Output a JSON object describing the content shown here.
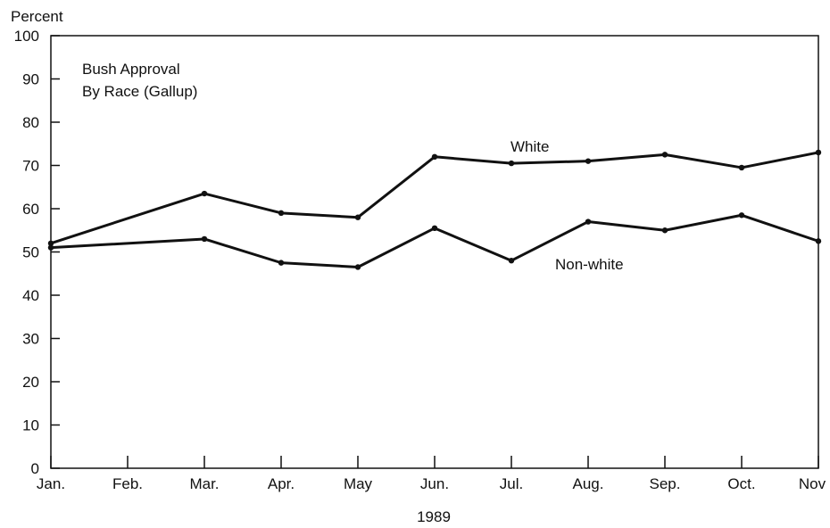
{
  "chart_data": {
    "type": "line",
    "title": "Bush Approval",
    "subtitle": "By Race (Gallup)",
    "ylabel": "Percent",
    "xlabel": "1989",
    "ylim": [
      0,
      100
    ],
    "yticks": [
      0,
      10,
      20,
      30,
      40,
      50,
      60,
      70,
      80,
      90,
      100
    ],
    "x_tick_labels": [
      "Jan.",
      "Feb.",
      "Mar.",
      "Apr.",
      "May",
      "Jun.",
      "Jul.",
      "Aug.",
      "Sep.",
      "Oct.",
      "Nov"
    ],
    "grid": false,
    "legend": "inline labels",
    "series": [
      {
        "name": "White",
        "x": [
          "Jan.",
          "Mar.",
          "Apr.",
          "May",
          "Jun.",
          "Jul.",
          "Aug.",
          "Sep.",
          "Oct.",
          "Nov"
        ],
        "values": [
          52,
          63.5,
          59,
          58,
          72,
          70.5,
          71,
          72.5,
          69.5,
          73
        ]
      },
      {
        "name": "Non-white",
        "x": [
          "Jan.",
          "Mar.",
          "Apr.",
          "May",
          "Jun.",
          "Jul.",
          "Aug.",
          "Sep.",
          "Oct.",
          "Nov"
        ],
        "values": [
          51,
          53,
          47.5,
          46.5,
          55.5,
          48,
          57,
          55,
          58.5,
          52.5
        ]
      }
    ]
  }
}
